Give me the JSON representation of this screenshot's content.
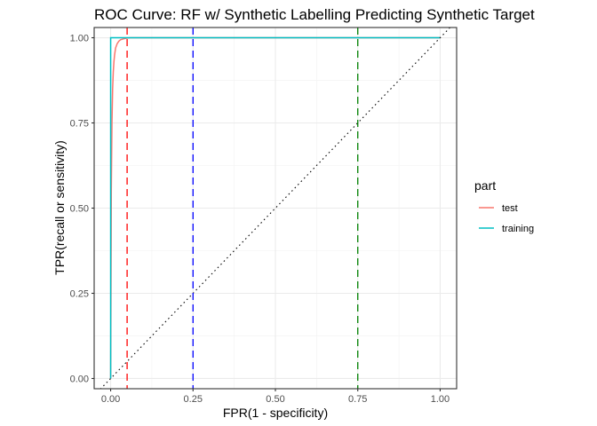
{
  "chart_data": {
    "type": "line",
    "title": "ROC Curve: RF w/ Synthetic Labelling Predicting Synthetic Target",
    "xlabel": "FPR(1 - specificity)",
    "ylabel": "TPR(recall or sensitivity)",
    "xlim": [
      -0.05,
      1.05
    ],
    "ylim": [
      -0.03,
      1.03
    ],
    "x_ticks": [
      0.0,
      0.25,
      0.5,
      0.75,
      1.0
    ],
    "x_tick_labels": [
      "0.00",
      "0.25",
      "0.50",
      "0.75",
      "1.00"
    ],
    "y_ticks": [
      0.0,
      0.25,
      0.5,
      0.75,
      1.0
    ],
    "y_tick_labels": [
      "0.00",
      "0.25",
      "0.50",
      "0.75",
      "1.00"
    ],
    "grid": true,
    "legend": {
      "title": "part",
      "position": "right"
    },
    "series": [
      {
        "name": "test",
        "color": "#F8766D",
        "x": [
          0.0,
          0.002,
          0.004,
          0.006,
          0.008,
          0.01,
          0.012,
          0.015,
          0.02,
          0.025,
          0.03,
          0.04,
          0.05,
          0.06,
          0.08,
          0.1,
          0.3,
          0.6,
          1.0
        ],
        "y": [
          0.0,
          0.55,
          0.75,
          0.85,
          0.9,
          0.93,
          0.95,
          0.97,
          0.983,
          0.99,
          0.994,
          0.997,
          0.999,
          1.0,
          1.0,
          1.0,
          1.0,
          1.0,
          1.0
        ]
      },
      {
        "name": "training",
        "color": "#00BFC4",
        "x": [
          0.0,
          0.0,
          1.0
        ],
        "y": [
          0.0,
          1.0,
          1.0
        ]
      }
    ],
    "reference_lines": [
      {
        "type": "diagonal",
        "slope": 1,
        "intercept": 0,
        "style": "dotted",
        "color": "#000000"
      },
      {
        "type": "vertical",
        "x": 0.05,
        "style": "dashed",
        "color": "red"
      },
      {
        "type": "vertical",
        "x": 0.25,
        "style": "dashed",
        "color": "blue"
      },
      {
        "type": "vertical",
        "x": 0.75,
        "style": "dashed",
        "color": "green"
      }
    ]
  }
}
